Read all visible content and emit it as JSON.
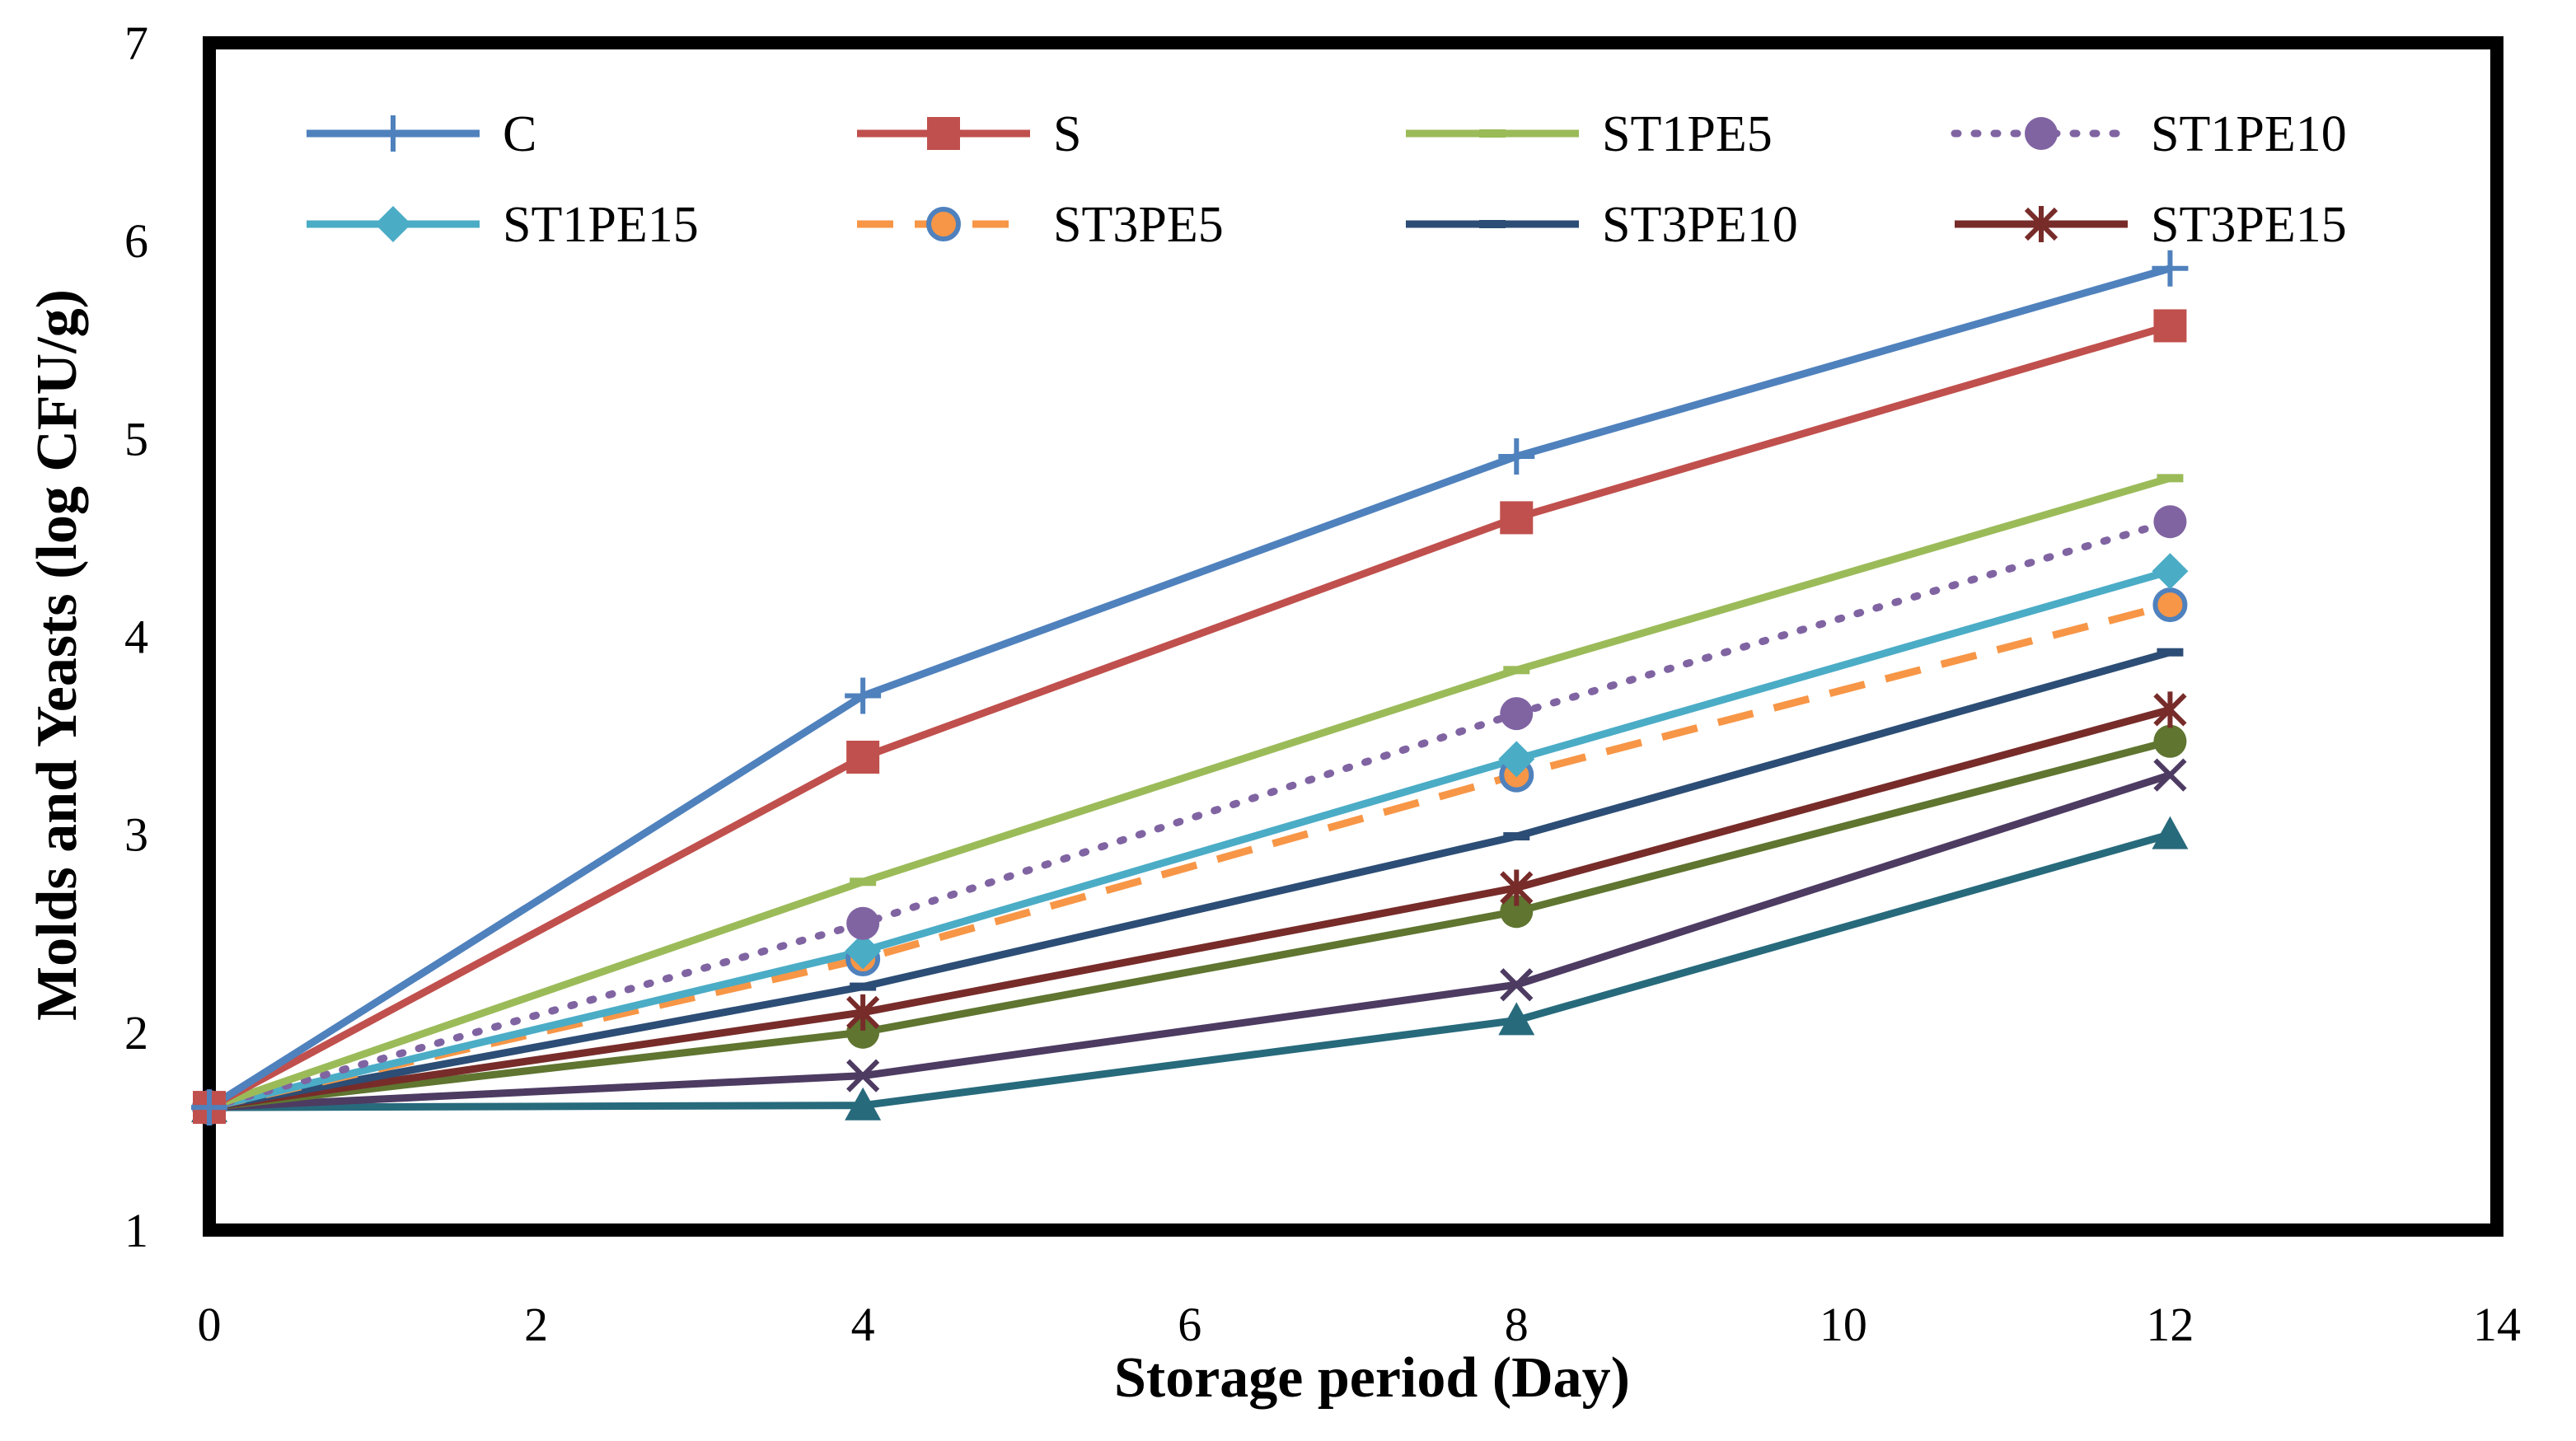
{
  "chart_data": {
    "type": "line",
    "title": "",
    "xlabel": "Storage period (Day)",
    "ylabel": "Molds and Yeasts (log CFU/g)",
    "xlim": [
      0,
      14
    ],
    "ylim": [
      1,
      7
    ],
    "x_ticks": [
      "0",
      "2",
      "4",
      "6",
      "8",
      "10",
      "12",
      "14"
    ],
    "y_ticks": [
      "1",
      "2",
      "3",
      "4",
      "5",
      "6",
      "7"
    ],
    "grid": false,
    "legend_position": "top",
    "x": [
      0,
      4,
      8,
      12
    ],
    "series": [
      {
        "name": "C",
        "color": "#4F81BD",
        "marker": "plus",
        "dash": "solid",
        "values": [
          1.62,
          3.7,
          4.91,
          5.86
        ]
      },
      {
        "name": "S",
        "color": "#C0504D",
        "marker": "square",
        "dash": "solid",
        "values": [
          1.62,
          3.39,
          4.6,
          5.57
        ]
      },
      {
        "name": "ST1PE5",
        "color": "#9BBB59",
        "marker": "dash",
        "dash": "solid",
        "values": [
          1.62,
          2.76,
          3.83,
          4.8
        ]
      },
      {
        "name": "ST1PE10",
        "color": "#8064A2",
        "marker": "circle",
        "dash": "dot",
        "values": [
          1.62,
          2.55,
          3.61,
          4.58
        ]
      },
      {
        "name": "ST1PE15",
        "color": "#4BACC6",
        "marker": "diamond",
        "dash": "solid",
        "values": [
          1.62,
          2.41,
          3.38,
          4.33
        ]
      },
      {
        "name": "ST3PE5",
        "color": "#F79646",
        "marker": "circle-open",
        "dash": "dash",
        "values": [
          1.62,
          2.37,
          3.3,
          4.16
        ]
      },
      {
        "name": "ST3PE10",
        "color": "#2C4D75",
        "marker": "dash",
        "dash": "solid",
        "values": [
          1.62,
          2.23,
          2.99,
          3.92
        ]
      },
      {
        "name": "ST3PE15",
        "color": "#772C2A",
        "marker": "star",
        "dash": "solid",
        "values": [
          1.62,
          2.1,
          2.73,
          3.63
        ]
      },
      {
        "color": "#5F7530",
        "marker": "circle",
        "dash": "solid",
        "values": [
          1.62,
          2.0,
          2.61,
          3.47
        ]
      },
      {
        "color": "#4D3B62",
        "marker": "x",
        "dash": "solid",
        "values": [
          1.62,
          1.78,
          2.24,
          3.3
        ]
      },
      {
        "color": "#276A7C",
        "marker": "triangle",
        "dash": "solid",
        "values": [
          1.62,
          1.63,
          2.06,
          3.0
        ]
      }
    ]
  }
}
